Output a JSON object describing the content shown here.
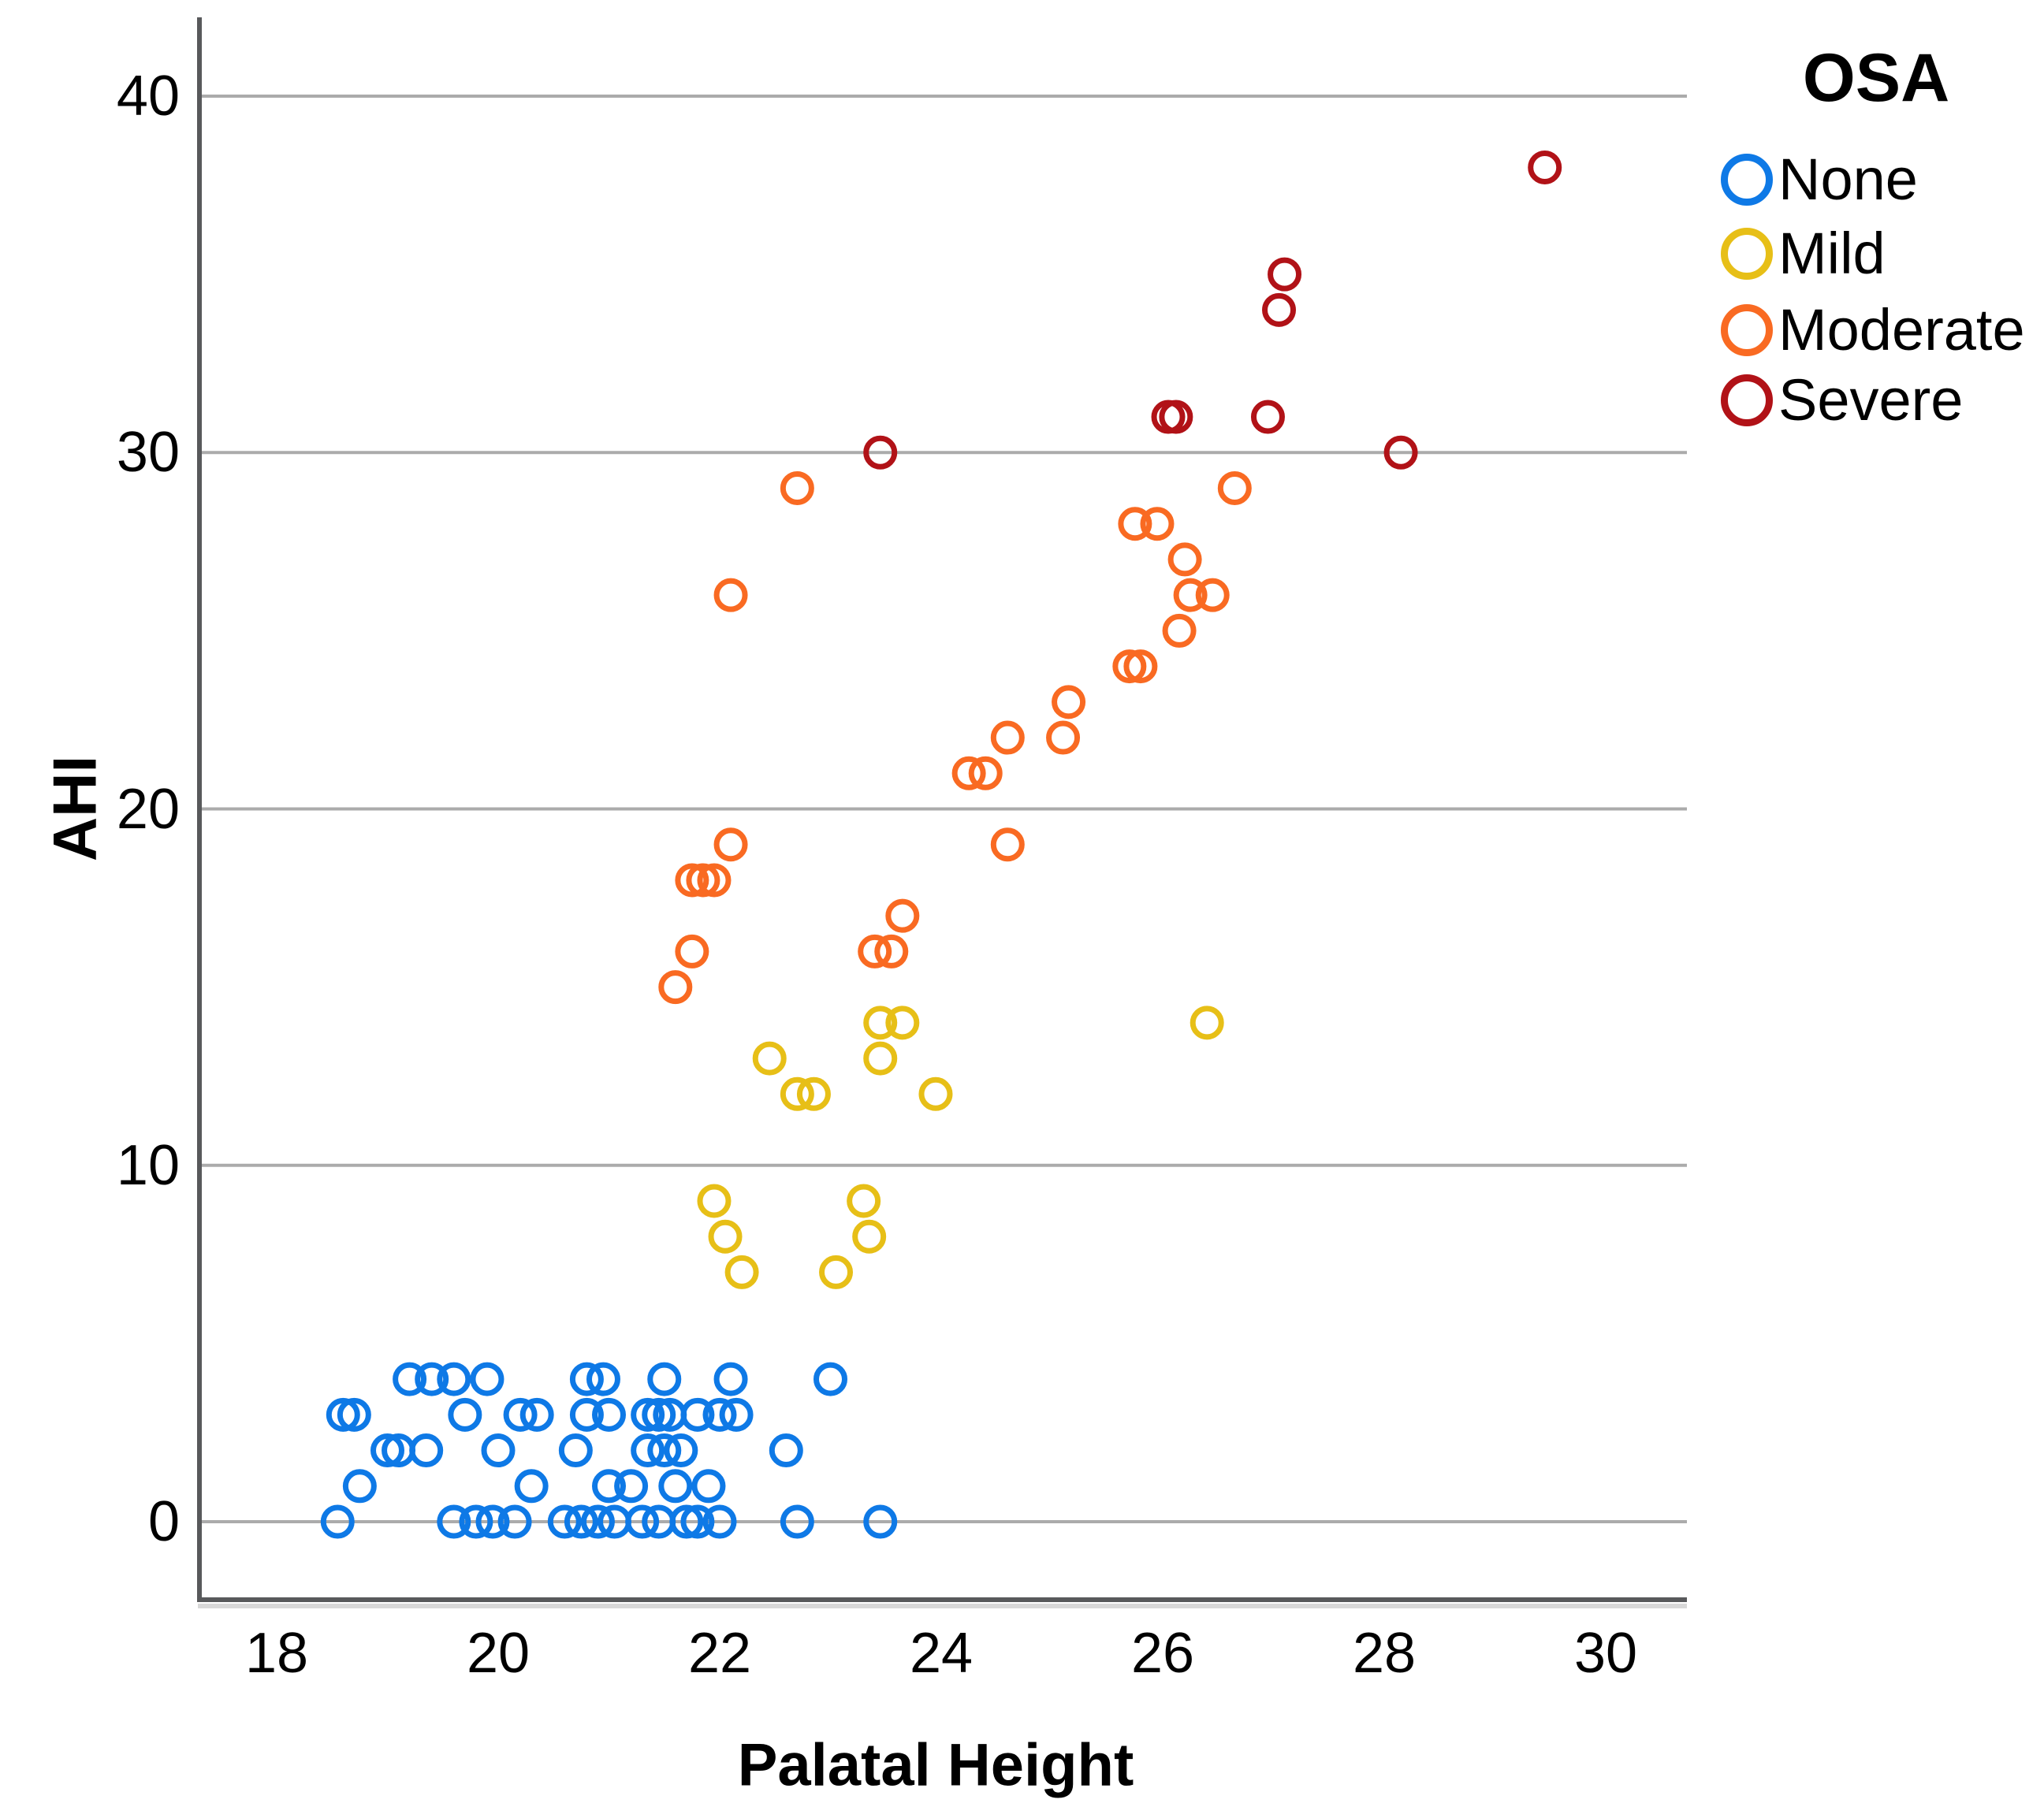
{
  "chart_data": {
    "type": "scatter",
    "title": "",
    "xlabel": "Palatal Height",
    "ylabel": "AHI",
    "xlim": [
      17.3,
      30.7
    ],
    "ylim": [
      -3.2,
      42.2
    ],
    "x_ticks": [
      18,
      20,
      22,
      24,
      26,
      28,
      30
    ],
    "y_ticks": [
      0,
      10,
      20,
      30,
      40
    ],
    "grid": "horizontal gridlines only",
    "marker": "open circle",
    "legend": {
      "title": "OSA",
      "position": "top-right"
    },
    "series": [
      {
        "name": "None",
        "color": "#0E79E6",
        "points": [
          [
            18.55,
            0
          ],
          [
            19.6,
            0
          ],
          [
            19.8,
            0
          ],
          [
            19.95,
            0
          ],
          [
            20.15,
            0
          ],
          [
            20.6,
            0
          ],
          [
            20.75,
            0
          ],
          [
            20.9,
            0
          ],
          [
            21.05,
            0
          ],
          [
            21.3,
            0
          ],
          [
            21.45,
            0
          ],
          [
            21.7,
            0
          ],
          [
            21.8,
            0
          ],
          [
            22.0,
            0
          ],
          [
            22.7,
            0
          ],
          [
            23.45,
            0
          ],
          [
            18.75,
            1
          ],
          [
            20.3,
            1
          ],
          [
            21.0,
            1
          ],
          [
            21.2,
            1
          ],
          [
            21.6,
            1
          ],
          [
            21.9,
            1
          ],
          [
            19.0,
            2
          ],
          [
            19.1,
            2
          ],
          [
            19.35,
            2
          ],
          [
            20.0,
            2
          ],
          [
            20.7,
            2
          ],
          [
            21.35,
            2
          ],
          [
            21.5,
            2
          ],
          [
            21.65,
            2
          ],
          [
            22.6,
            2
          ],
          [
            18.6,
            3
          ],
          [
            18.7,
            3
          ],
          [
            19.7,
            3
          ],
          [
            20.2,
            3
          ],
          [
            20.35,
            3
          ],
          [
            20.8,
            3
          ],
          [
            21.0,
            3
          ],
          [
            21.35,
            3
          ],
          [
            21.45,
            3
          ],
          [
            21.55,
            3
          ],
          [
            21.8,
            3
          ],
          [
            22.0,
            3
          ],
          [
            22.15,
            3
          ],
          [
            19.2,
            4
          ],
          [
            19.4,
            4
          ],
          [
            19.6,
            4
          ],
          [
            19.9,
            4
          ],
          [
            20.8,
            4
          ],
          [
            20.95,
            4
          ],
          [
            21.5,
            4
          ],
          [
            22.1,
            4
          ],
          [
            23.0,
            4
          ]
        ]
      },
      {
        "name": "Mild",
        "color": "#E7BF17",
        "points": [
          [
            21.95,
            9
          ],
          [
            22.05,
            8
          ],
          [
            22.2,
            7
          ],
          [
            23.05,
            7
          ],
          [
            23.3,
            9
          ],
          [
            23.35,
            8
          ],
          [
            22.45,
            13
          ],
          [
            22.7,
            12
          ],
          [
            22.85,
            12
          ],
          [
            23.45,
            13
          ],
          [
            23.45,
            14
          ],
          [
            23.65,
            14
          ],
          [
            23.95,
            12
          ],
          [
            26.4,
            14
          ]
        ]
      },
      {
        "name": "Moderate",
        "color": "#F96A22",
        "points": [
          [
            21.6,
            15
          ],
          [
            21.75,
            16
          ],
          [
            21.75,
            18
          ],
          [
            21.85,
            18
          ],
          [
            21.95,
            18
          ],
          [
            22.1,
            19
          ],
          [
            22.1,
            26
          ],
          [
            22.7,
            29
          ],
          [
            23.4,
            16
          ],
          [
            23.55,
            16
          ],
          [
            23.65,
            17
          ],
          [
            24.25,
            21
          ],
          [
            24.4,
            21
          ],
          [
            24.6,
            19
          ],
          [
            24.6,
            22
          ],
          [
            25.1,
            22
          ],
          [
            25.15,
            23
          ],
          [
            25.7,
            24
          ],
          [
            25.8,
            24
          ],
          [
            25.75,
            28
          ],
          [
            25.95,
            28
          ],
          [
            26.15,
            25
          ],
          [
            26.25,
            26
          ],
          [
            26.45,
            26
          ],
          [
            26.2,
            27
          ],
          [
            26.65,
            29
          ]
        ]
      },
      {
        "name": "Severe",
        "color": "#B11217",
        "points": [
          [
            23.45,
            30
          ],
          [
            26.05,
            31
          ],
          [
            26.12,
            31
          ],
          [
            26.95,
            31
          ],
          [
            27.05,
            34
          ],
          [
            27.1,
            35
          ],
          [
            28.15,
            30
          ],
          [
            29.45,
            38
          ]
        ]
      }
    ]
  }
}
